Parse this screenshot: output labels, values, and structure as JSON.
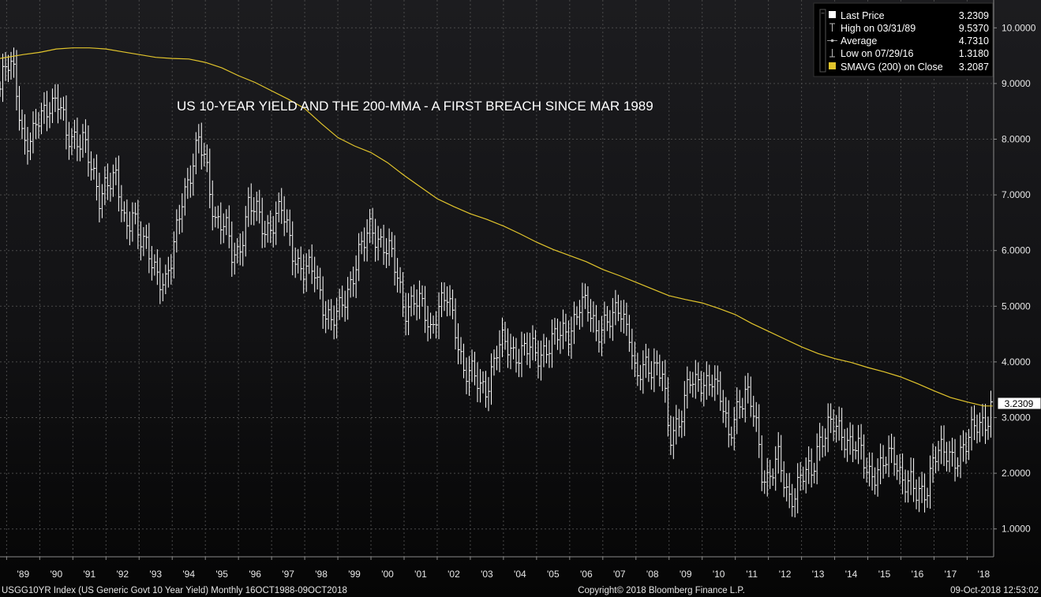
{
  "chart_data": {
    "type": "line",
    "title": "US 10-YEAR YIELD AND THE 200-MMA - A FIRST BREACH SINCE MAR 1989",
    "xlabel": "",
    "ylabel": "",
    "xlim": [
      1988.8,
      2018.8
    ],
    "ylim": [
      0.5,
      10.5
    ],
    "y_ticks": [
      "1.0000",
      "2.0000",
      "3.0000",
      "4.0000",
      "5.0000",
      "6.0000",
      "7.0000",
      "8.0000",
      "9.0000",
      "10.0000"
    ],
    "x_ticks": [
      "'89",
      "'90",
      "'91",
      "'92",
      "'93",
      "'94",
      "'95",
      "'96",
      "'97",
      "'98",
      "'99",
      "'00",
      "'01",
      "'02",
      "'03",
      "'04",
      "'05",
      "'06",
      "'07",
      "'08",
      "'09",
      "'10",
      "'11",
      "'12",
      "'13",
      "'14",
      "'15",
      "'16",
      "'17",
      "'18"
    ],
    "last_value_label": "3.2309",
    "grid": true,
    "legend_position": "top-right",
    "series": [
      {
        "name": "Last Price",
        "style": "monthly-bars",
        "color": "#ffffff",
        "x": [
          1988.8,
          1989.0,
          1989.25,
          1989.5,
          1989.75,
          1990.0,
          1990.3,
          1990.6,
          1990.8,
          1991.0,
          1991.3,
          1991.6,
          1991.8,
          1992.0,
          1992.3,
          1992.6,
          1992.8,
          1993.0,
          1993.3,
          1993.6,
          1993.8,
          1994.0,
          1994.3,
          1994.6,
          1994.8,
          1995.0,
          1995.3,
          1995.6,
          1995.8,
          1996.0,
          1996.3,
          1996.6,
          1996.8,
          1997.0,
          1997.3,
          1997.6,
          1997.8,
          1998.0,
          1998.3,
          1998.6,
          1998.8,
          1999.0,
          1999.3,
          1999.6,
          1999.8,
          2000.0,
          2000.3,
          2000.6,
          2000.8,
          2001.0,
          2001.3,
          2001.6,
          2001.8,
          2002.0,
          2002.3,
          2002.6,
          2002.8,
          2003.0,
          2003.3,
          2003.5,
          2003.8,
          2004.0,
          2004.3,
          2004.6,
          2004.8,
          2005.0,
          2005.3,
          2005.6,
          2005.8,
          2006.0,
          2006.3,
          2006.6,
          2006.8,
          2007.0,
          2007.3,
          2007.5,
          2007.8,
          2008.0,
          2008.3,
          2008.6,
          2008.8,
          2009.0,
          2009.3,
          2009.6,
          2009.8,
          2010.0,
          2010.3,
          2010.6,
          2010.8,
          2011.0,
          2011.3,
          2011.6,
          2011.8,
          2012.0,
          2012.3,
          2012.6,
          2012.8,
          2013.0,
          2013.3,
          2013.5,
          2013.8,
          2014.0,
          2014.3,
          2014.6,
          2014.8,
          2015.0,
          2015.3,
          2015.6,
          2015.8,
          2016.0,
          2016.3,
          2016.5,
          2016.8,
          2017.0,
          2017.3,
          2017.6,
          2017.8,
          2018.0,
          2018.3,
          2018.6,
          2018.77
        ],
        "values": [
          8.9,
          9.3,
          9.2,
          8.0,
          7.9,
          8.4,
          8.7,
          8.6,
          8.0,
          8.1,
          8.0,
          7.3,
          7.0,
          7.3,
          7.2,
          6.4,
          6.8,
          6.2,
          5.9,
          5.6,
          5.4,
          5.8,
          7.0,
          7.5,
          7.9,
          7.6,
          6.6,
          6.4,
          5.9,
          6.0,
          6.8,
          6.6,
          6.4,
          6.5,
          6.7,
          6.1,
          5.8,
          5.6,
          5.6,
          5.0,
          4.7,
          4.8,
          5.3,
          5.9,
          6.1,
          6.4,
          6.2,
          5.9,
          5.5,
          5.0,
          5.1,
          4.9,
          4.6,
          5.0,
          5.1,
          4.5,
          3.9,
          3.8,
          3.5,
          3.6,
          4.2,
          4.3,
          4.2,
          4.2,
          4.2,
          4.1,
          4.3,
          4.4,
          4.5,
          4.6,
          5.0,
          4.9,
          4.6,
          4.7,
          4.7,
          5.0,
          4.6,
          3.6,
          3.9,
          4.0,
          3.8,
          2.5,
          3.0,
          3.7,
          3.5,
          3.6,
          3.8,
          3.2,
          2.6,
          3.2,
          3.4,
          3.0,
          2.1,
          1.9,
          2.2,
          1.6,
          1.7,
          1.9,
          2.0,
          2.6,
          2.8,
          2.8,
          2.7,
          2.5,
          2.3,
          2.0,
          2.1,
          2.2,
          2.3,
          2.0,
          1.8,
          1.5,
          1.8,
          2.4,
          2.3,
          2.3,
          2.4,
          2.5,
          2.9,
          3.0,
          3.2309
        ]
      },
      {
        "name": "SMAVG (200)  on Close",
        "style": "line",
        "color": "#e2c52c",
        "x": [
          1988.8,
          1989.5,
          1990.0,
          1990.5,
          1991.0,
          1991.5,
          1992.0,
          1992.5,
          1993.0,
          1993.5,
          1994.0,
          1994.5,
          1995.0,
          1995.5,
          1996.0,
          1996.5,
          1997.0,
          1997.5,
          1998.0,
          1998.5,
          1999.0,
          1999.5,
          2000.0,
          2000.5,
          2001.0,
          2001.5,
          2002.0,
          2002.5,
          2003.0,
          2003.5,
          2004.0,
          2004.5,
          2005.0,
          2005.5,
          2006.0,
          2006.5,
          2007.0,
          2007.5,
          2008.0,
          2008.5,
          2009.0,
          2009.5,
          2010.0,
          2010.5,
          2011.0,
          2011.5,
          2012.0,
          2012.5,
          2013.0,
          2013.5,
          2014.0,
          2014.5,
          2015.0,
          2015.5,
          2016.0,
          2016.5,
          2017.0,
          2017.5,
          2018.0,
          2018.5,
          2018.77
        ],
        "values": [
          9.45,
          9.52,
          9.56,
          9.62,
          9.64,
          9.64,
          9.62,
          9.57,
          9.52,
          9.47,
          9.45,
          9.44,
          9.38,
          9.28,
          9.14,
          9.02,
          8.87,
          8.72,
          8.55,
          8.28,
          8.03,
          7.88,
          7.76,
          7.58,
          7.35,
          7.14,
          6.93,
          6.79,
          6.66,
          6.56,
          6.44,
          6.3,
          6.15,
          6.02,
          5.91,
          5.8,
          5.66,
          5.55,
          5.43,
          5.31,
          5.19,
          5.12,
          5.06,
          4.96,
          4.85,
          4.69,
          4.55,
          4.41,
          4.27,
          4.15,
          4.06,
          3.99,
          3.9,
          3.82,
          3.73,
          3.61,
          3.48,
          3.36,
          3.28,
          3.21,
          3.2087
        ]
      }
    ]
  },
  "legend": {
    "rows": [
      {
        "label": "Last Price",
        "value": "3.2309",
        "marker": "square-white"
      },
      {
        "label": "High on 03/31/89",
        "value": "9.5370",
        "marker": "high-tick"
      },
      {
        "label": "Average",
        "value": "4.7310",
        "marker": "average-dot"
      },
      {
        "label": "Low on 07/29/16",
        "value": "1.3180",
        "marker": "low-tick"
      },
      {
        "label": "SMAVG (200)  on Close",
        "value": "3.2087",
        "marker": "square-yellow"
      }
    ]
  },
  "footer": {
    "left": "USGG10YR Index (US Generic Govt 10 Year Yield)  Monthly 16OCT1988-09OCT2018",
    "center": "Copyright© 2018 Bloomberg Finance L.P.",
    "right": "09-Oct-2018 12:53:02"
  },
  "colors": {
    "background": "#161618",
    "grid": "#4a4a4a",
    "price": "#ffffff",
    "sma": "#e2c52c"
  }
}
